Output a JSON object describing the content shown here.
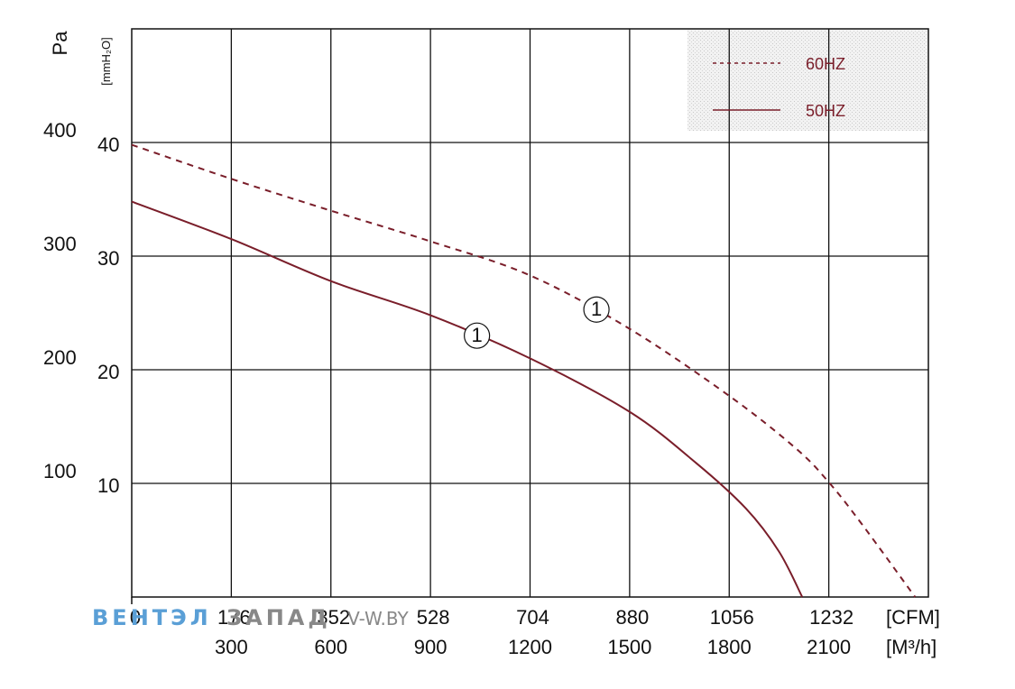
{
  "chart_data": {
    "type": "line",
    "x_unit": "[M³/h]",
    "x_unit_alt": "[CFM]",
    "x_ticks": [
      300,
      600,
      900,
      1200,
      1500,
      1800,
      2100
    ],
    "x_ticks_cfm": [
      "0",
      "176",
      "352",
      "528",
      "704",
      "880",
      "1056",
      "1232"
    ],
    "xlim": [
      0,
      2400
    ],
    "y_unit": "Pa",
    "y_unit_alt": "[mmH₂O]",
    "y_ticks_pa": [
      100,
      200,
      300,
      400
    ],
    "y_ticks_mm": [
      10,
      20,
      30,
      40
    ],
    "ylim": [
      0,
      500
    ],
    "grid": true,
    "legend_position": "top-right",
    "series": [
      {
        "name": "60HZ",
        "style": "dashed",
        "color": "#7a1e2a",
        "label": "1",
        "label_x": 1400,
        "label_y": 253,
        "x": [
          0,
          300,
          600,
          900,
          1200,
          1500,
          1800,
          2000,
          2100,
          2200,
          2360
        ],
        "y": [
          398,
          368,
          340,
          313,
          283,
          236,
          177,
          131,
          101,
          64,
          0
        ]
      },
      {
        "name": "50HZ",
        "style": "solid",
        "color": "#7a1e2a",
        "label": "1",
        "label_x": 1040,
        "label_y": 230,
        "x": [
          0,
          300,
          600,
          900,
          1200,
          1500,
          1700,
          1850,
          1950,
          2020
        ],
        "y": [
          348,
          315,
          278,
          248,
          210,
          163,
          118,
          78,
          40,
          0
        ]
      }
    ]
  },
  "watermark": {
    "part1": "ВЕНТЭЛ",
    "part2": "ЗАПАД",
    "part3": "V-W.BY",
    "color1": "#5a9fd6",
    "color2": "#888888"
  }
}
